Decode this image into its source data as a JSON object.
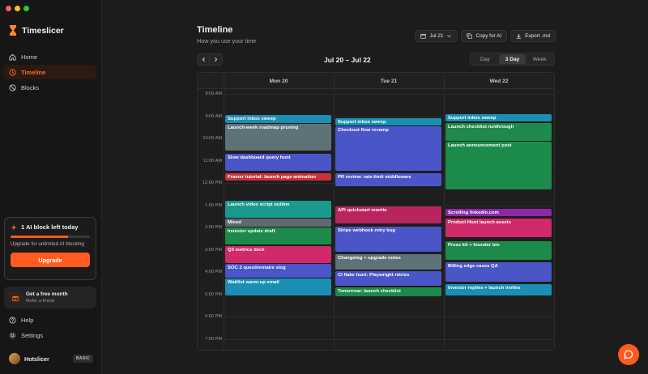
{
  "sidebar": {
    "brand_name": "Timeslicer",
    "nav": [
      {
        "label": "Home",
        "icon": "home-icon",
        "active": false
      },
      {
        "label": "Timeline",
        "icon": "clock-icon",
        "active": true
      },
      {
        "label": "Blocks",
        "icon": "blocks-icon",
        "active": false
      }
    ],
    "ai_card": {
      "title": "1 AI block left today",
      "progress": 0.72,
      "subtitle": "Upgrade for unlimited AI blocking",
      "button": "Upgrade"
    },
    "free_card": {
      "title": "Get a free month",
      "subtitle": "Refer a friend"
    },
    "bottom_nav": [
      {
        "label": "Help",
        "icon": "help-icon"
      },
      {
        "label": "Settings",
        "icon": "gear-icon"
      }
    ],
    "user": {
      "name": "Hotslicer",
      "plan": "BASIC"
    }
  },
  "header": {
    "title": "Timeline",
    "subtitle": "How you use your time",
    "date_button": "Jul 21",
    "copy_button": "Copy for AI",
    "export_button": "Export .md",
    "range": "Jul 20 – Jul 22",
    "views": [
      "Day",
      "3 Day",
      "Week"
    ],
    "active_view": "3 Day"
  },
  "calendar": {
    "days": [
      "Mon 20",
      "Tue 21",
      "Wed 22"
    ],
    "hours": [
      "8:00 AM",
      "9:00 AM",
      "10:00 AM",
      "11:00 AM",
      "12:00 PM",
      "1:00 PM",
      "2:00 PM",
      "3:00 PM",
      "4:00 PM",
      "5:00 PM",
      "6:00 PM",
      "7:00 PM"
    ],
    "start_hour": 8,
    "events": [
      {
        "day": 0,
        "start": 8.95,
        "end": 9.3,
        "title": "Support inbox sweep",
        "color": "#1a8fb3"
      },
      {
        "day": 0,
        "start": 9.35,
        "end": 10.55,
        "title": "Launch-week roadmap pruning",
        "color": "#5e7378"
      },
      {
        "day": 0,
        "start": 10.7,
        "end": 11.45,
        "title": "Slow dashboard query hunt",
        "color": "#4a55c8"
      },
      {
        "day": 0,
        "start": 11.55,
        "end": 11.9,
        "title": "Framer tutorial: launch page animation",
        "color": "#c8323a"
      },
      {
        "day": 0,
        "start": 12.8,
        "end": 13.55,
        "title": "Launch video script outline",
        "color": "#1a9a8c"
      },
      {
        "day": 0,
        "start": 13.6,
        "end": 13.95,
        "title": "Mixed",
        "color": "#5e6a70"
      },
      {
        "day": 0,
        "start": 14.0,
        "end": 14.75,
        "title": "Investor update draft",
        "color": "#1c8a4a"
      },
      {
        "day": 0,
        "start": 14.85,
        "end": 15.6,
        "title": "Q3 metrics deck",
        "color": "#d02a6a"
      },
      {
        "day": 0,
        "start": 15.65,
        "end": 16.25,
        "title": "SOC 2 questionnaire slog",
        "color": "#4a55c8"
      },
      {
        "day": 0,
        "start": 16.3,
        "end": 17.05,
        "title": "Waitlist warm-up email",
        "color": "#1a8fb3"
      },
      {
        "day": 1,
        "start": 9.1,
        "end": 9.4,
        "title": "Support inbox sweep",
        "color": "#1a8fb3"
      },
      {
        "day": 1,
        "start": 9.45,
        "end": 11.45,
        "title": "Checkout flow revamp",
        "color": "#4a55c8"
      },
      {
        "day": 1,
        "start": 11.55,
        "end": 12.15,
        "title": "PR review: rate-limit middleware",
        "color": "#4a55c8"
      },
      {
        "day": 1,
        "start": 13.05,
        "end": 13.8,
        "title": "API quickstart rewrite",
        "color": "#b8255e"
      },
      {
        "day": 1,
        "start": 13.95,
        "end": 15.1,
        "title": "Stripe webhook retry bug",
        "color": "#4a55c8"
      },
      {
        "day": 1,
        "start": 15.2,
        "end": 15.9,
        "title": "Changelog + upgrade notes",
        "color": "#5e7378"
      },
      {
        "day": 1,
        "start": 15.95,
        "end": 16.6,
        "title": "CI flake hunt: Playwright retries",
        "color": "#4a55c8"
      },
      {
        "day": 1,
        "start": 16.7,
        "end": 17.1,
        "title": "Tomorrow: launch checklist",
        "color": "#1c8a4a"
      },
      {
        "day": 2,
        "start": 8.9,
        "end": 9.25,
        "title": "Support inbox sweep",
        "color": "#1a8fb3"
      },
      {
        "day": 2,
        "start": 9.3,
        "end": 10.1,
        "title": "Launch checklist runthrough",
        "color": "#1c8a4a"
      },
      {
        "day": 2,
        "start": 10.15,
        "end": 12.3,
        "title": "Launch announcement post",
        "color": "#1c8a4a"
      },
      {
        "day": 2,
        "start": 13.15,
        "end": 13.5,
        "title": "Scrolling linkedin.com",
        "color": "#8a2aa8"
      },
      {
        "day": 2,
        "start": 13.6,
        "end": 14.45,
        "title": "Product Hunt launch assets",
        "color": "#d02a6a"
      },
      {
        "day": 2,
        "start": 14.6,
        "end": 15.45,
        "title": "Press kit + founder bio",
        "color": "#1c8a4a"
      },
      {
        "day": 2,
        "start": 15.55,
        "end": 16.45,
        "title": "Billing edge cases QA",
        "color": "#4a55c8"
      },
      {
        "day": 2,
        "start": 16.55,
        "end": 17.05,
        "title": "Investor replies + launch invites",
        "color": "#1a8fb3"
      }
    ]
  }
}
